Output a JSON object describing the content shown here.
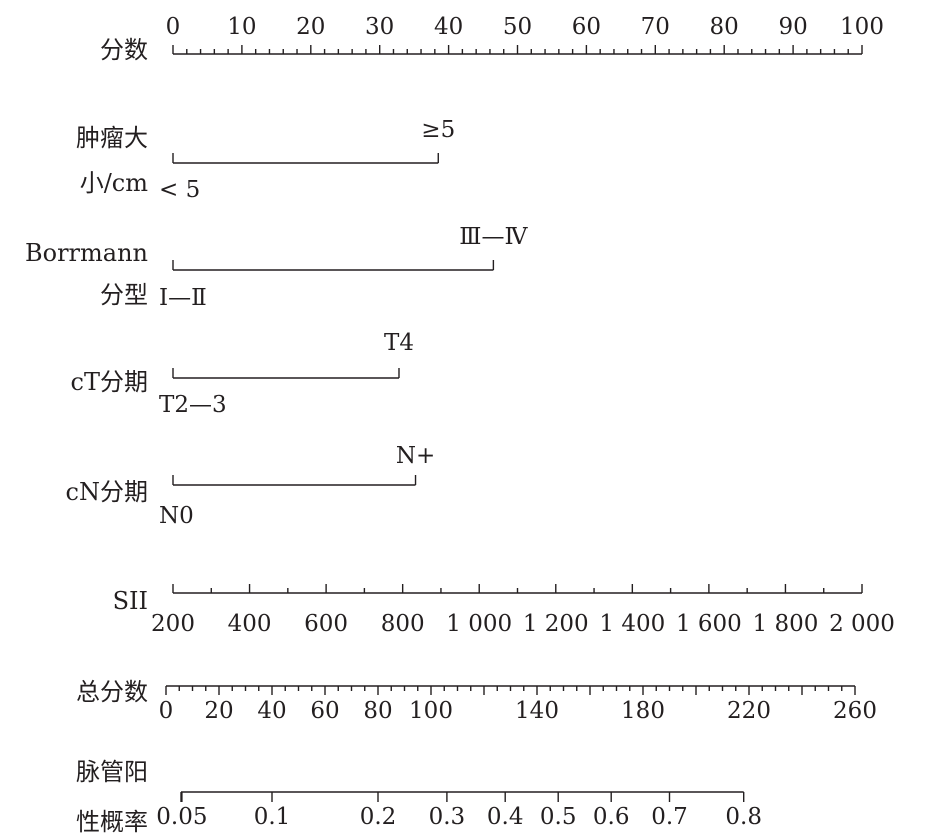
{
  "chart_data": {
    "type": "nomogram",
    "points": {
      "label": "分数",
      "range": [
        0,
        100
      ],
      "ticks": [
        0,
        10,
        20,
        30,
        40,
        50,
        60,
        70,
        80,
        90,
        100
      ]
    },
    "variables": [
      {
        "label_lines": [
          "肿瘤大",
          "小/cm"
        ],
        "levels": [
          {
            "label": "< 5",
            "points": 0
          },
          {
            "label": "≥5",
            "points": 38.5
          }
        ]
      },
      {
        "label_lines": [
          "Borrmann",
          "分型"
        ],
        "levels": [
          {
            "label": "Ⅰ—Ⅱ",
            "points": 0
          },
          {
            "label": "Ⅲ—Ⅳ",
            "points": 46.5
          }
        ]
      },
      {
        "label_lines": [
          "cT分期"
        ],
        "levels": [
          {
            "label": "T2—3",
            "points": 0
          },
          {
            "label": "T4",
            "points": 32.8
          }
        ]
      },
      {
        "label_lines": [
          "cN分期"
        ],
        "levels": [
          {
            "label": "N0",
            "points": 0
          },
          {
            "label": "N+",
            "points": 35.2
          }
        ]
      }
    ],
    "sii": {
      "label": "SII",
      "range": [
        200,
        2000
      ],
      "ticks": [
        200,
        400,
        600,
        800,
        1000,
        1200,
        1400,
        1600,
        1800,
        2000
      ],
      "tick_labels": [
        "200",
        "400",
        "600",
        "800",
        "1 000",
        "1 200",
        "1 400",
        "1 600",
        "1 800",
        "2 000"
      ],
      "points_at_min": 0,
      "points_at_max": 100
    },
    "total_points": {
      "label": "总分数",
      "range": [
        0,
        260
      ],
      "ticks": [
        0,
        20,
        40,
        60,
        80,
        100,
        140,
        180,
        220,
        260
      ],
      "minor_step": 5
    },
    "probability": {
      "label_lines": [
        "脉管阳",
        "性概率"
      ],
      "ticks": [
        {
          "label": "0.05",
          "total_points": 6
        },
        {
          "label": "0.1",
          "total_points": 40
        },
        {
          "label": "0.2",
          "total_points": 80
        },
        {
          "label": "0.3",
          "total_points": 106
        },
        {
          "label": "0.4",
          "total_points": 128
        },
        {
          "label": "0.5",
          "total_points": 148
        },
        {
          "label": "0.6",
          "total_points": 168
        },
        {
          "label": "0.7",
          "total_points": 190
        },
        {
          "label": "0.8",
          "total_points": 218
        }
      ]
    }
  }
}
